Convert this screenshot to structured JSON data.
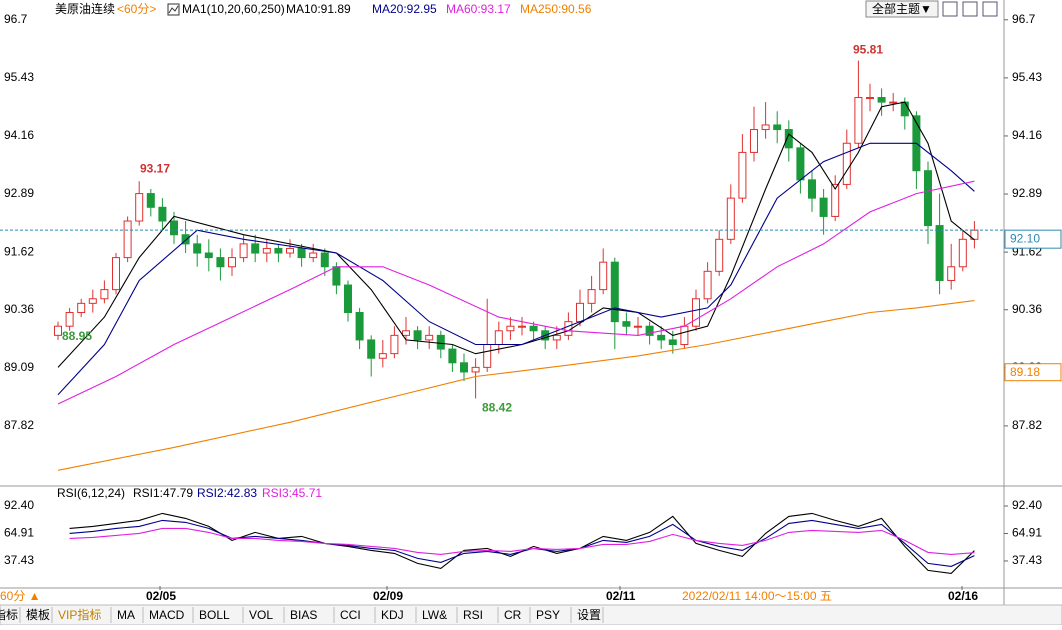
{
  "header": {
    "symbol": "美原油连续",
    "period": "<60分>",
    "indicator": "MA1(10,20,60,250)",
    "theme_button": "全部主题▼"
  },
  "chart_data": [
    {
      "type": "candlestick",
      "ylim": [
        86.55,
        96.87
      ],
      "yticks": [
        96.7,
        95.43,
        94.16,
        92.89,
        91.62,
        90.36,
        89.09,
        87.82
      ],
      "candles": [
        [
          89.8,
          90.1,
          89.7,
          90.0
        ],
        [
          90.0,
          90.4,
          89.9,
          90.3
        ],
        [
          90.3,
          90.6,
          90.2,
          90.5
        ],
        [
          90.5,
          90.8,
          90.3,
          90.6
        ],
        [
          90.6,
          91.0,
          90.5,
          90.8
        ],
        [
          90.8,
          91.6,
          90.7,
          91.5
        ],
        [
          91.5,
          92.4,
          91.4,
          92.3
        ],
        [
          92.3,
          93.17,
          92.2,
          92.9
        ],
        [
          92.9,
          93.0,
          92.4,
          92.6
        ],
        [
          92.6,
          92.8,
          92.1,
          92.3
        ],
        [
          92.3,
          92.5,
          91.8,
          92.0
        ],
        [
          92.0,
          92.3,
          91.6,
          91.8
        ],
        [
          91.8,
          92.0,
          91.3,
          91.6
        ],
        [
          91.6,
          91.9,
          91.2,
          91.5
        ],
        [
          91.5,
          91.7,
          91.0,
          91.3
        ],
        [
          91.3,
          91.7,
          91.1,
          91.5
        ],
        [
          91.5,
          92.0,
          91.4,
          91.8
        ],
        [
          91.8,
          92.0,
          91.4,
          91.6
        ],
        [
          91.6,
          91.9,
          91.4,
          91.7
        ],
        [
          91.7,
          91.8,
          91.4,
          91.6
        ],
        [
          91.6,
          91.9,
          91.5,
          91.7
        ],
        [
          91.7,
          91.8,
          91.3,
          91.5
        ],
        [
          91.5,
          91.8,
          91.4,
          91.6
        ],
        [
          91.6,
          91.7,
          91.1,
          91.3
        ],
        [
          91.3,
          91.4,
          90.7,
          90.9
        ],
        [
          90.9,
          91.0,
          90.1,
          90.3
        ],
        [
          90.3,
          90.4,
          89.5,
          89.7
        ],
        [
          89.7,
          89.8,
          88.9,
          89.3
        ],
        [
          89.3,
          89.7,
          89.1,
          89.4
        ],
        [
          89.4,
          90.0,
          89.3,
          89.8
        ],
        [
          89.8,
          90.2,
          89.6,
          89.9
        ],
        [
          89.9,
          90.0,
          89.5,
          89.7
        ],
        [
          89.7,
          90.0,
          89.5,
          89.8
        ],
        [
          89.8,
          89.9,
          89.3,
          89.5
        ],
        [
          89.5,
          89.6,
          89.0,
          89.2
        ],
        [
          89.2,
          89.4,
          88.8,
          89.0
        ],
        [
          89.0,
          89.3,
          88.42,
          89.1
        ],
        [
          89.1,
          90.6,
          89.0,
          89.6
        ],
        [
          89.6,
          90.1,
          89.4,
          89.9
        ],
        [
          89.9,
          90.2,
          89.7,
          90.0
        ],
        [
          90.0,
          90.2,
          89.8,
          90.0
        ],
        [
          90.0,
          90.1,
          89.7,
          89.9
        ],
        [
          89.9,
          90.0,
          89.5,
          89.7
        ],
        [
          89.7,
          90.0,
          89.5,
          89.8
        ],
        [
          89.8,
          90.3,
          89.7,
          90.1
        ],
        [
          90.1,
          90.8,
          90.0,
          90.5
        ],
        [
          90.5,
          91.1,
          90.3,
          90.8
        ],
        [
          90.8,
          91.7,
          90.7,
          91.4
        ],
        [
          91.4,
          91.5,
          89.5,
          90.1
        ],
        [
          90.1,
          90.3,
          89.8,
          90.0
        ],
        [
          90.0,
          90.2,
          89.8,
          90.0
        ],
        [
          90.0,
          90.1,
          89.6,
          89.8
        ],
        [
          89.8,
          90.0,
          89.5,
          89.7
        ],
        [
          89.7,
          89.9,
          89.4,
          89.6
        ],
        [
          89.6,
          90.2,
          89.5,
          90.0
        ],
        [
          90.0,
          90.8,
          89.9,
          90.6
        ],
        [
          90.6,
          91.4,
          90.5,
          91.2
        ],
        [
          91.2,
          92.1,
          91.1,
          91.9
        ],
        [
          91.9,
          93.1,
          91.8,
          92.8
        ],
        [
          92.8,
          94.2,
          92.7,
          93.8
        ],
        [
          93.8,
          94.8,
          93.6,
          94.3
        ],
        [
          94.3,
          94.9,
          94.1,
          94.4
        ],
        [
          94.4,
          94.7,
          94.0,
          94.3
        ],
        [
          94.3,
          94.5,
          93.6,
          93.9
        ],
        [
          93.9,
          94.0,
          92.9,
          93.2
        ],
        [
          93.2,
          93.4,
          92.5,
          92.8
        ],
        [
          92.8,
          93.0,
          92.0,
          92.4
        ],
        [
          92.4,
          93.3,
          92.3,
          93.1
        ],
        [
          93.1,
          94.3,
          93.0,
          94.0
        ],
        [
          94.0,
          95.81,
          93.9,
          95.0
        ],
        [
          95.0,
          95.3,
          94.7,
          95.0
        ],
        [
          95.0,
          95.2,
          94.6,
          94.9
        ],
        [
          94.9,
          95.1,
          94.7,
          94.9
        ],
        [
          94.9,
          95.0,
          94.3,
          94.6
        ],
        [
          94.6,
          94.7,
          93.0,
          93.4
        ],
        [
          93.4,
          93.6,
          91.8,
          92.2
        ],
        [
          92.2,
          92.9,
          90.7,
          91.0
        ],
        [
          91.0,
          91.8,
          90.8,
          91.3
        ],
        [
          91.3,
          92.1,
          91.2,
          91.9
        ],
        [
          91.9,
          92.3,
          91.7,
          92.1
        ]
      ],
      "series": [
        {
          "name": "MA10:91.89",
          "color": "#000000",
          "x": [
            0,
            4,
            7,
            10,
            16,
            22,
            24,
            27,
            30,
            34,
            36,
            40,
            44,
            47,
            50,
            53,
            56,
            58,
            61,
            63,
            65,
            67,
            69,
            71,
            73,
            75,
            77,
            79
          ],
          "values": [
            89.1,
            90.2,
            91.5,
            92.4,
            92.0,
            91.7,
            91.6,
            90.8,
            89.7,
            89.6,
            89.4,
            89.6,
            89.9,
            90.4,
            90.3,
            89.8,
            90.0,
            91.1,
            93.0,
            94.2,
            93.8,
            93.0,
            93.8,
            94.8,
            94.9,
            94.0,
            92.3,
            91.89
          ]
        },
        {
          "name": "MA20:92.95",
          "color": "#00008b",
          "x": [
            0,
            4,
            7,
            12,
            16,
            24,
            28,
            32,
            36,
            40,
            46,
            48,
            52,
            56,
            58,
            62,
            66,
            70,
            74,
            77,
            79
          ],
          "values": [
            88.5,
            89.6,
            91.0,
            92.1,
            91.9,
            91.6,
            91.0,
            90.1,
            89.6,
            89.6,
            90.2,
            90.4,
            90.2,
            90.4,
            90.9,
            92.8,
            93.6,
            94.0,
            94.0,
            93.4,
            92.95
          ]
        },
        {
          "name": "MA60:93.17",
          "color": "#e020e0",
          "x": [
            0,
            5,
            10,
            15,
            20,
            24,
            28,
            32,
            38,
            44,
            50,
            54,
            58,
            62,
            66,
            70,
            74,
            79
          ],
          "values": [
            88.3,
            88.9,
            89.6,
            90.2,
            90.8,
            91.3,
            91.3,
            90.9,
            90.2,
            89.9,
            89.8,
            90.0,
            90.6,
            91.3,
            91.8,
            92.5,
            92.9,
            93.17
          ]
        },
        {
          "name": "MA250:90.56",
          "color": "#f08000",
          "x": [
            0,
            10,
            20,
            28,
            36,
            44,
            50,
            56,
            62,
            66,
            70,
            74,
            79
          ],
          "values": [
            86.85,
            87.35,
            87.9,
            88.4,
            88.9,
            89.15,
            89.35,
            89.6,
            89.9,
            90.1,
            90.3,
            90.4,
            90.56
          ]
        }
      ],
      "annotations": [
        {
          "value": 93.17
        },
        {
          "value": 88.95
        },
        {
          "value": 95.81
        },
        {
          "value": 88.42
        }
      ],
      "last_price": 92.1,
      "last_price_label": "92.10",
      "ma_price": 89.18
    },
    {
      "type": "rsi",
      "title": "RSI(6,12,24)",
      "ylim": [
        13.4,
        108.4
      ],
      "yticks": [
        {
          "value": 92.4,
          "label": "92.40"
        },
        64.91,
        37.43
      ],
      "x": [
        1,
        3,
        5,
        7,
        9,
        11,
        13,
        15,
        17,
        19,
        21,
        23,
        25,
        27,
        29,
        31,
        33,
        35,
        37,
        39,
        41,
        43,
        45,
        47,
        49,
        51,
        53,
        55,
        57,
        59,
        61,
        63,
        65,
        67,
        69,
        71,
        73,
        75,
        77,
        79
      ],
      "series": [
        {
          "name": "RSI1:47.79",
          "color": "#000000",
          "values": [
            70,
            72,
            75,
            78,
            85,
            80,
            72,
            58,
            66,
            60,
            62,
            55,
            52,
            48,
            45,
            35,
            30,
            48,
            50,
            42,
            52,
            45,
            50,
            62,
            58,
            66,
            82,
            55,
            48,
            42,
            65,
            82,
            85,
            78,
            72,
            80,
            52,
            28,
            25,
            47.79
          ]
        },
        {
          "name": "RSI2:42.83",
          "color": "#00008b",
          "values": [
            65,
            67,
            70,
            72,
            78,
            76,
            70,
            60,
            62,
            60,
            58,
            55,
            53,
            50,
            48,
            40,
            36,
            45,
            47,
            44,
            50,
            47,
            50,
            58,
            56,
            62,
            74,
            58,
            52,
            48,
            60,
            75,
            78,
            74,
            70,
            74,
            55,
            35,
            32,
            42.83
          ]
        },
        {
          "name": "RSI3:45.71",
          "color": "#e020e0",
          "values": [
            60,
            61,
            63,
            65,
            70,
            70,
            66,
            60,
            60,
            58,
            57,
            55,
            54,
            52,
            50,
            46,
            44,
            47,
            48,
            47,
            50,
            49,
            50,
            54,
            54,
            57,
            64,
            58,
            55,
            53,
            58,
            66,
            68,
            67,
            66,
            68,
            58,
            46,
            44,
            45.71
          ]
        }
      ]
    }
  ],
  "xlabels": [
    "02/05",
    "02/09",
    "02/11",
    "02/16"
  ],
  "cursor_time": "2022/02/11 14:00～15:00 五",
  "period_indicator": "60分 ▲",
  "toolbar": [
    "指标",
    "模板",
    "VIP指标",
    "MA",
    "MACD",
    "BOLL",
    "VOL",
    "BIAS",
    "CCI",
    "KDJ",
    "LW&",
    "RSI",
    "CR",
    "PSY",
    "设置"
  ]
}
